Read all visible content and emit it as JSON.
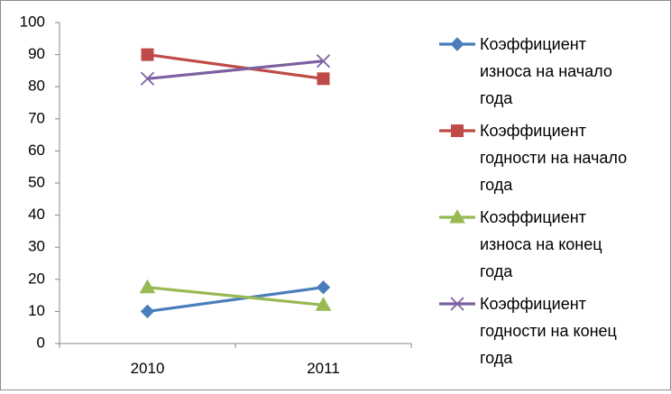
{
  "chart_data": {
    "type": "line",
    "categories": [
      "2010",
      "2011"
    ],
    "ylim": [
      0,
      100
    ],
    "yticks": [
      "0",
      "10",
      "20",
      "30",
      "40",
      "50",
      "60",
      "70",
      "80",
      "90",
      "100"
    ],
    "grid": false,
    "legend_position": "right",
    "series": [
      {
        "name": "Коэффициент износа на начало года",
        "lines": [
          "Коэффициент",
          "износа на начало",
          "года"
        ],
        "values": [
          10,
          17.5
        ],
        "color": "#4a7ebb",
        "marker": "diamond"
      },
      {
        "name": "Коэффициент годности на начало года",
        "lines": [
          "Коэффициент",
          "годности на начало",
          "года"
        ],
        "values": [
          90,
          82.5
        ],
        "color": "#be4b48",
        "marker": "square"
      },
      {
        "name": "Коэффициент износа на конец года",
        "lines": [
          "Коэффициент",
          "износа на конец",
          "года"
        ],
        "values": [
          17.5,
          12
        ],
        "color": "#98b954",
        "marker": "triangle"
      },
      {
        "name": "Коэффициент годности на конец года",
        "lines": [
          "Коэффициент",
          "годности на конец",
          "года"
        ],
        "values": [
          82.5,
          88
        ],
        "color": "#7d60a0",
        "marker": "x"
      }
    ]
  }
}
